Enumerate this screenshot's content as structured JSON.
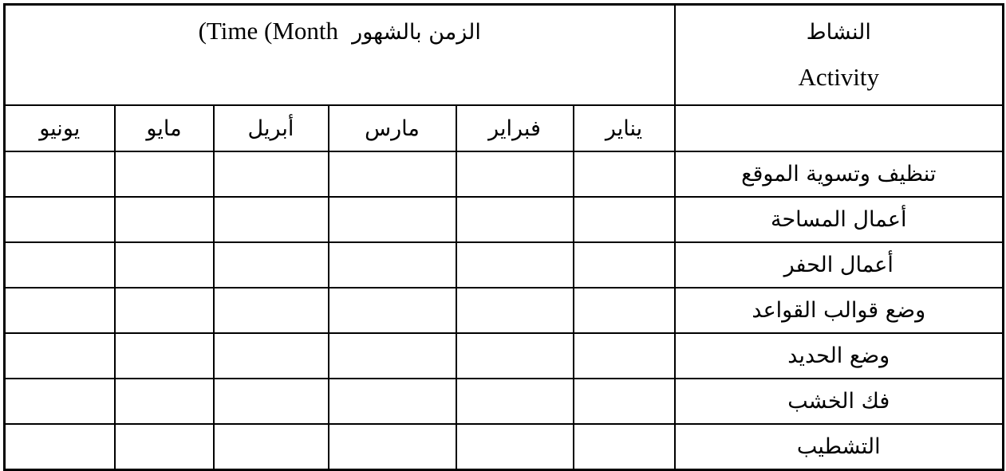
{
  "header": {
    "time_en": "(Time  (Month",
    "time_ar": "الزمن بالشهور",
    "activity_ar": "النشاط",
    "activity_en": "Activity"
  },
  "months": [
    "يونيو",
    "مايو",
    "أبريل",
    "مارس",
    "فبراير",
    "يناير"
  ],
  "activities": [
    "تنظيف وتسوية الموقع",
    "أعمال المساحة",
    "أعمال الحفر",
    "وضع قوالب القواعد",
    "وضع الحديد",
    "فك الخشب",
    "التشطيب"
  ]
}
